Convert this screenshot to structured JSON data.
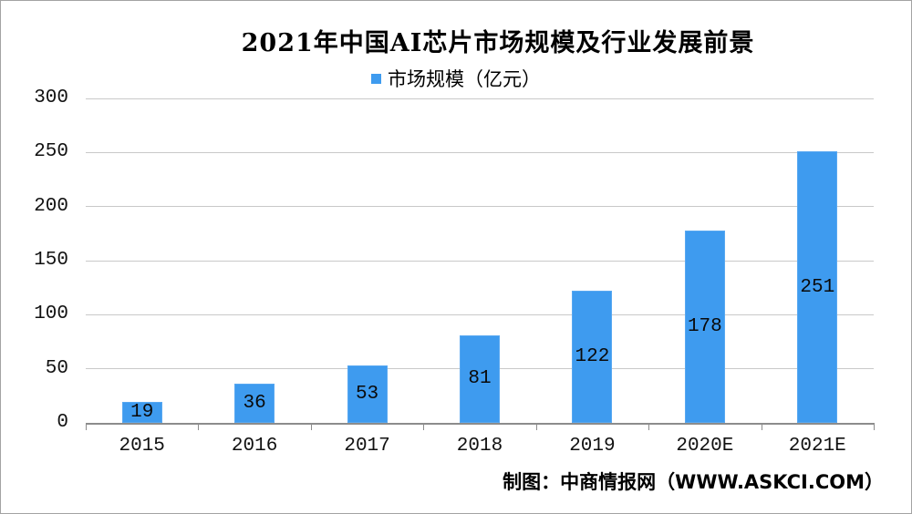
{
  "title": "2021年中国AI芯片市场规模及行业发展前景",
  "legend": {
    "label": "市场规模（亿元）",
    "marker_color": "#3E9BEF"
  },
  "footer": "制图：中商情报网（WWW.ASKCI.COM）",
  "colors": {
    "bar": "#3E9BEF",
    "bar_border": "#58A8F1",
    "gridline": "#C9C9C9",
    "axis": "#8C8C8C",
    "frame_border": "#A3A3A3",
    "text": "#000000"
  },
  "chart_data": {
    "type": "bar",
    "title": "2021年中国AI芯片市场规模及行业发展前景",
    "series_name": "市场规模（亿元）",
    "categories": [
      "2015",
      "2016",
      "2017",
      "2018",
      "2019",
      "2020E",
      "2021E"
    ],
    "values": [
      19,
      36,
      53,
      81,
      122,
      178,
      251
    ],
    "unit": "亿元",
    "ylim": [
      0,
      300
    ],
    "yticks": [
      0,
      50,
      100,
      150,
      200,
      250,
      300
    ],
    "grid": true,
    "legend_position": "top-center",
    "value_label_position": "center-inside",
    "footer": "制图：中商情报网（WWW.ASKCI.COM）"
  }
}
